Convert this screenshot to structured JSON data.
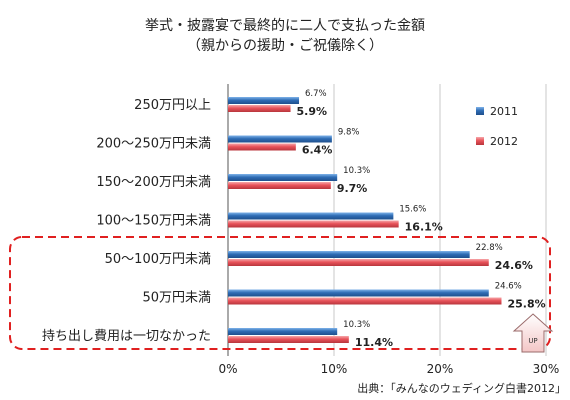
{
  "chart_data": {
    "type": "bar",
    "orientation": "horizontal",
    "title_line1": "挙式・披露宴で最終的に二人で支払った金額",
    "title_line2": "（親からの援助・ご祝儀除く）",
    "categories": [
      "250万円以上",
      "200～250万円未満",
      "150～200万円未満",
      "100～150万円未満",
      "50～100万円未満",
      "50万円未満",
      "持ち出し費用は一切なかった"
    ],
    "series": [
      {
        "name": "2011",
        "color": "#2f6db5",
        "values": [
          6.7,
          9.8,
          10.3,
          15.6,
          22.8,
          24.6,
          10.3
        ],
        "labels": [
          "6.7%",
          "9.8%",
          "10.3%",
          "15.6%",
          "22.8%",
          "24.6%",
          "10.3%"
        ]
      },
      {
        "name": "2012",
        "color": "#e8535a",
        "values": [
          5.9,
          6.4,
          9.7,
          16.1,
          24.6,
          25.8,
          11.4
        ],
        "labels": [
          "5.9%",
          "6.4%",
          "9.7%",
          "16.1%",
          "24.6%",
          "25.8%",
          "11.4%"
        ]
      }
    ],
    "xlim": [
      0,
      30
    ],
    "x_ticks": [
      "0%",
      "10%",
      "20%",
      "30%"
    ],
    "legend_position": "right",
    "highlight_categories": [
      "50～100万円未満",
      "50万円未満",
      "持ち出し費用は一切なかった"
    ],
    "annotation": "UP",
    "source": "出典：「みんなのウェディング白書2012」"
  }
}
